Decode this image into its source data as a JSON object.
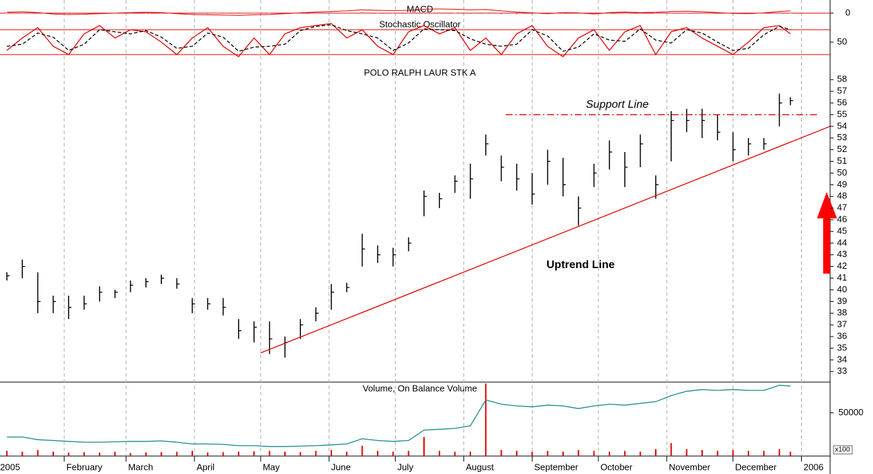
{
  "chart_data": [
    {
      "type": "macd",
      "title": "MACD",
      "ylim": [
        -2,
        2
      ],
      "yticks": [
        0
      ],
      "color": "#e00000",
      "hist_color": "#888888",
      "values": [
        0.3,
        0.5,
        0.2,
        -0.3,
        -0.5,
        -0.4,
        -0.2,
        0,
        0.2,
        0.3,
        0.2,
        -0.2,
        -0.5,
        -0.6,
        -0.7,
        -0.8,
        -0.6,
        -0.5,
        -0.2,
        0.1,
        0.4,
        0.6,
        0.8,
        1.2,
        1.0,
        0.9,
        1.0,
        1.4,
        1.5,
        1.4,
        1.2,
        1.3,
        0.8,
        0.4,
        0.1,
        -0.2,
        0.2,
        0.1,
        -0.3,
        0.2,
        0.4,
        0.2,
        0.3,
        0.6,
        0.7,
        0.5,
        0.2,
        -0.1,
        -0.2,
        0.1,
        0.6,
        0.8
      ],
      "histogram": [
        0.1,
        0.2,
        0,
        -0.2,
        -0.2,
        -0.1,
        0,
        0.1,
        0.1,
        0.1,
        0,
        -0.2,
        -0.2,
        -0.2,
        -0.1,
        -0.1,
        0,
        0.1,
        0.2,
        0.2,
        0.3,
        0.3,
        0.2,
        0.4,
        0.1,
        0,
        0.1,
        0.3,
        0.3,
        0.1,
        -0.1,
        0,
        -0.3,
        -0.3,
        -0.2,
        -0.2,
        0.1,
        0,
        -0.2,
        0.2,
        0.2,
        0,
        0.1,
        0.2,
        0.2,
        0,
        -0.1,
        -0.2,
        -0.1,
        0.1,
        0.3,
        0.2
      ]
    },
    {
      "type": "stochastic",
      "title": "Stochastic Oscillator",
      "ylim": [
        0,
        100
      ],
      "yticks": [
        50
      ],
      "levels": [
        20,
        80
      ],
      "series": [
        {
          "color": "#e00000",
          "dash": false,
          "values": [
            30,
            60,
            85,
            40,
            20,
            70,
            90,
            60,
            80,
            75,
            50,
            20,
            60,
            85,
            40,
            15,
            60,
            20,
            70,
            85,
            90,
            95,
            60,
            80,
            40,
            20,
            75,
            90,
            70,
            85,
            30,
            60,
            20,
            70,
            90,
            40,
            15,
            60,
            80,
            30,
            75,
            90,
            20,
            75,
            85,
            60,
            40,
            20,
            50,
            85,
            90,
            70
          ]
        },
        {
          "color": "#000000",
          "dash": true,
          "values": [
            40,
            45,
            72,
            62,
            30,
            45,
            80,
            75,
            70,
            78,
            62,
            35,
            40,
            72,
            62,
            28,
            38,
            40,
            45,
            78,
            88,
            92,
            78,
            70,
            60,
            30,
            48,
            82,
            80,
            78,
            58,
            45,
            40,
            45,
            80,
            65,
            28,
            38,
            70,
            55,
            52,
            82,
            55,
            48,
            80,
            72,
            50,
            30,
            35,
            68,
            88,
            80
          ]
        }
      ]
    },
    {
      "type": "ohlc",
      "title": "POLO RALPH LAUR STK A",
      "color": "#000000",
      "x": [
        5,
        12,
        19,
        26,
        33,
        40,
        47,
        54,
        61,
        68,
        75,
        82,
        89,
        96,
        103,
        110,
        117,
        124,
        131,
        138,
        145,
        152,
        159,
        166,
        173,
        180,
        187,
        194,
        201,
        208,
        215,
        222,
        229,
        236,
        243,
        250,
        257,
        264,
        271,
        278,
        285,
        292,
        299,
        306,
        313,
        320,
        327,
        334,
        341,
        348,
        355,
        360
      ],
      "high": [
        41.5,
        42.6,
        41.5,
        39.5,
        39.5,
        39.5,
        40.3,
        40,
        40.8,
        41,
        41.3,
        41,
        39.3,
        39.3,
        39.3,
        37.5,
        37.3,
        37.3,
        36,
        37.5,
        38.5,
        40.5,
        40.6,
        44.8,
        43.8,
        43.6,
        44.5,
        48.5,
        48.3,
        49.8,
        50.8,
        53.3,
        51.5,
        50.8,
        50,
        52,
        51.3,
        48,
        50.8,
        52.8,
        51.8,
        53.3,
        49.8,
        55.3,
        55.5,
        55.5,
        55,
        53.5,
        53,
        53,
        56.8,
        56.5
      ],
      "low": [
        40.8,
        41,
        38,
        38,
        37.5,
        38.3,
        39,
        39.3,
        39.8,
        40.2,
        40.5,
        40.1,
        38,
        38.3,
        37.8,
        35.8,
        35.5,
        34.5,
        34.2,
        35.8,
        37.3,
        38.3,
        39.8,
        42,
        42.3,
        42,
        43.3,
        46.3,
        47,
        48.3,
        47.8,
        51.5,
        49.3,
        48.5,
        47.3,
        49,
        48,
        45.5,
        48.8,
        50.3,
        48.8,
        50.5,
        47.8,
        51,
        53.5,
        53,
        52.8,
        51,
        51.5,
        52,
        54,
        55.8
      ],
      "close": [
        41.2,
        42,
        39,
        39,
        38.5,
        38.8,
        39.8,
        39.8,
        40.4,
        40.7,
        41,
        40.5,
        38.8,
        38.8,
        38.5,
        36.5,
        36.8,
        35.8,
        35.5,
        37,
        38,
        39.8,
        40.2,
        43.5,
        43,
        43,
        44,
        48,
        47.8,
        49.3,
        49.5,
        52.5,
        50.5,
        49.5,
        48.2,
        51,
        49,
        47,
        50,
        51.8,
        50.5,
        52.5,
        49,
        54.5,
        54.5,
        54.5,
        53.5,
        52,
        52.5,
        52.5,
        56,
        56.2
      ],
      "xlim": [
        4.4,
        378
      ],
      "xticks": [
        {
          "value": 1,
          "label": "2005"
        },
        {
          "value": 31,
          "label": "February"
        },
        {
          "value": 59,
          "label": "March"
        },
        {
          "value": 90,
          "label": "April"
        },
        {
          "value": 120,
          "label": "May"
        },
        {
          "value": 151,
          "label": "June"
        },
        {
          "value": 181,
          "label": "July"
        },
        {
          "value": 212,
          "label": "August"
        },
        {
          "value": 243,
          "label": "September"
        },
        {
          "value": 273,
          "label": "October"
        },
        {
          "value": 304,
          "label": "November"
        },
        {
          "value": 334,
          "label": "December"
        },
        {
          "value": 365,
          "label": "2006"
        }
      ],
      "ylim": [
        32.1,
        58.9
      ],
      "yticks": [
        33,
        34,
        35,
        36,
        37,
        38,
        39,
        40,
        41,
        42,
        43,
        44,
        45,
        46,
        47,
        48,
        49,
        50,
        51,
        52,
        53,
        54,
        55,
        56,
        57,
        58
      ],
      "grid": true,
      "annotations": [
        "Support Line",
        "Uptrend Line"
      ],
      "trend_line": {
        "x": [
          120,
          378
        ],
        "y": [
          34.6,
          54
        ],
        "color": "#e00000"
      },
      "support_line": {
        "x": [
          231,
          373
        ],
        "y": [
          55,
          55
        ],
        "color": "#e00000"
      }
    },
    {
      "type": "volume",
      "title": "Volume, On Balance Volume",
      "ylim": [
        0,
        84000
      ],
      "yticks": [
        50000
      ],
      "unit": "x100",
      "bar_color": "#e00000",
      "line_color": "#1a8a8a",
      "values": [
        6000,
        5000,
        7000,
        5000,
        4000,
        4500,
        4000,
        5000,
        3500,
        4000,
        4500,
        5000,
        6000,
        4000,
        4500,
        5000,
        5500,
        6000,
        5000,
        4500,
        6000,
        7000,
        5000,
        12000,
        6000,
        5000,
        6000,
        22000,
        6000,
        5000,
        5000,
        84000,
        7000,
        6000,
        5000,
        6000,
        5000,
        7000,
        6000,
        5000,
        6000,
        5000,
        8000,
        15000,
        8000,
        7000,
        6000,
        7000,
        6000,
        6000,
        8000,
        5000
      ],
      "obv": [
        22000,
        22000,
        19000,
        18000,
        17000,
        16000,
        16000,
        16500,
        17000,
        17000,
        17500,
        16000,
        14000,
        14000,
        13500,
        12000,
        12000,
        11000,
        11000,
        11500,
        12000,
        13000,
        14000,
        20000,
        18000,
        17000,
        18000,
        30000,
        31000,
        32000,
        35000,
        65000,
        60000,
        58000,
        57000,
        59000,
        58000,
        55000,
        58000,
        60000,
        59000,
        61000,
        63000,
        70000,
        75000,
        77000,
        76000,
        77000,
        76000,
        76000,
        82000,
        81000
      ]
    }
  ]
}
